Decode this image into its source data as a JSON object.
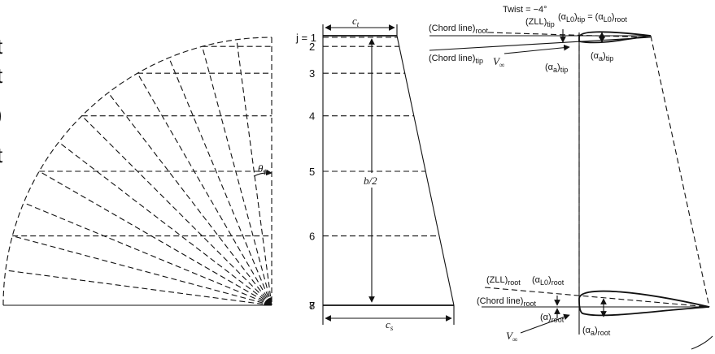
{
  "left_edge": {
    "glyphs": [
      "t",
      "t",
      ")",
      "t"
    ]
  },
  "quarter_circle": {
    "theta_label": "θ",
    "theta_sub": "1"
  },
  "planform": {
    "ct_label": "c",
    "ct_sub": "t",
    "cs_label": "c",
    "cs_sub": "s",
    "span_label": "b/2",
    "stations": [
      "j = 1",
      "2",
      "3",
      "4",
      "5",
      "6",
      "7",
      "8"
    ]
  },
  "tip_section": {
    "twist": "Twist = −4°",
    "chord_root_main": "(Chord line)",
    "chord_root_sub": "root",
    "zll_main": "(ZLL)",
    "zll_sub": "tip",
    "alpha_l0_tip_main": "(α",
    "alpha_l0_tip_sub": "L0",
    "alpha_l0_tip_close": ")",
    "alpha_l0_tip_sub2": "tip",
    "equals": "=",
    "alpha_l0_root_main": "(α",
    "alpha_l0_root_sub": "L0",
    "alpha_l0_root_close": ")",
    "alpha_l0_root_sub2": "root",
    "chord_tip_main": "(Chord line)",
    "chord_tip_sub": "tip",
    "v_inf": "V",
    "v_inf_sub": "∞",
    "alpha_a_tip_main": "(α",
    "alpha_a_tip_sub": "a",
    "alpha_a_tip_close": ")",
    "alpha_a_tip_sub2": "tip",
    "alpha_a_tip2_main": "(α",
    "alpha_a_tip2_sub": "a",
    "alpha_a_tip2_close": ")",
    "alpha_a_tip2_sub2": "tip"
  },
  "root_section": {
    "zll_main": "(ZLL)",
    "zll_sub": "root",
    "alpha_l0_main": "(α",
    "alpha_l0_sub": "L0",
    "alpha_l0_close": ")",
    "alpha_l0_sub2": "root",
    "chord_main": "(Chord line)",
    "chord_sub": "root",
    "alpha_main": "(α)",
    "alpha_sub": "root",
    "v_inf": "V",
    "v_inf_sub": "∞",
    "alpha_a_main": "(α",
    "alpha_a_sub": "a",
    "alpha_a_close": ")",
    "alpha_a_sub2": "root"
  }
}
